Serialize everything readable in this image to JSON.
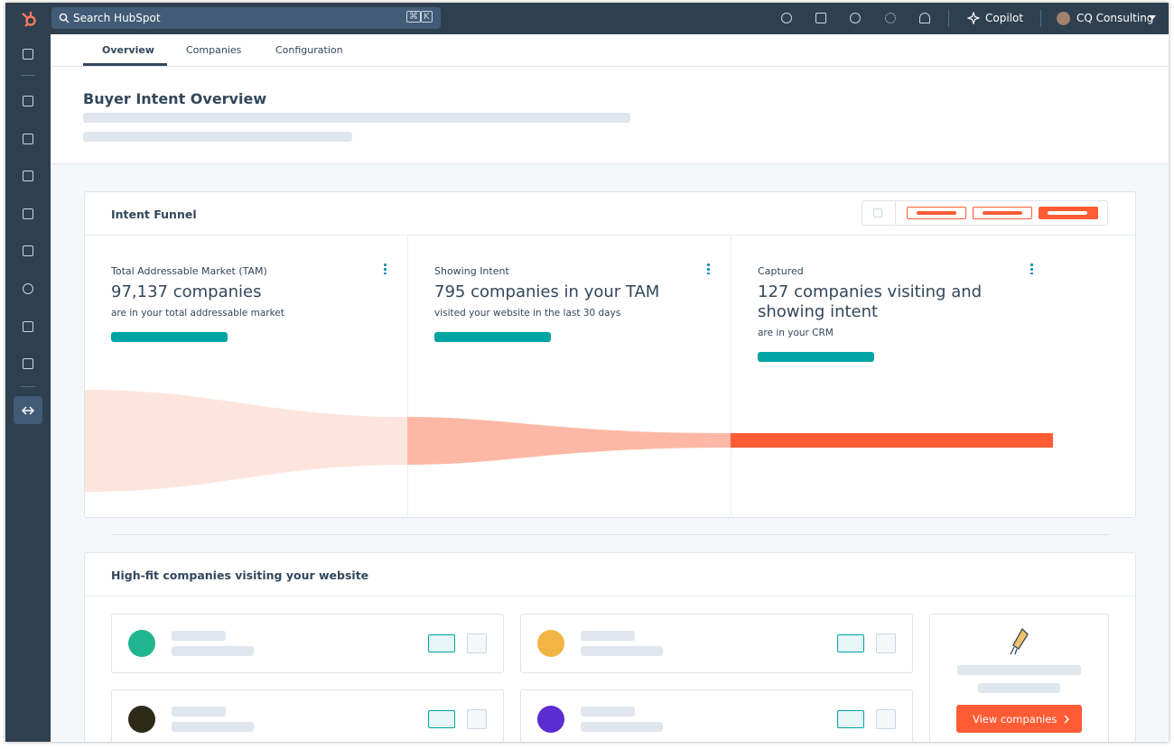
{
  "topbar": {
    "search": "Search HubSpot",
    "shortcut": [
      "⌘",
      "K"
    ],
    "copilot": "Copilot",
    "account": "CQ Consulting"
  },
  "tabs": [
    "Overview",
    "Companies",
    "Configuration"
  ],
  "header": {
    "title": "Buyer Intent Overview"
  },
  "funnel": {
    "title": "Intent Funnel",
    "stages": [
      {
        "label": "Total Addressable Market (TAM)",
        "headline": "97,137 companies",
        "detail": "are in your total addressable market"
      },
      {
        "label": "Showing Intent",
        "headline": "795 companies in your TAM",
        "detail": "visited your website in the last 30 days"
      },
      {
        "label": "Captured",
        "headline": "127 companies visiting and showing intent",
        "detail": "are in your CRM"
      }
    ]
  },
  "companies": {
    "title": "High-fit companies visiting your website",
    "action": "View companies"
  }
}
